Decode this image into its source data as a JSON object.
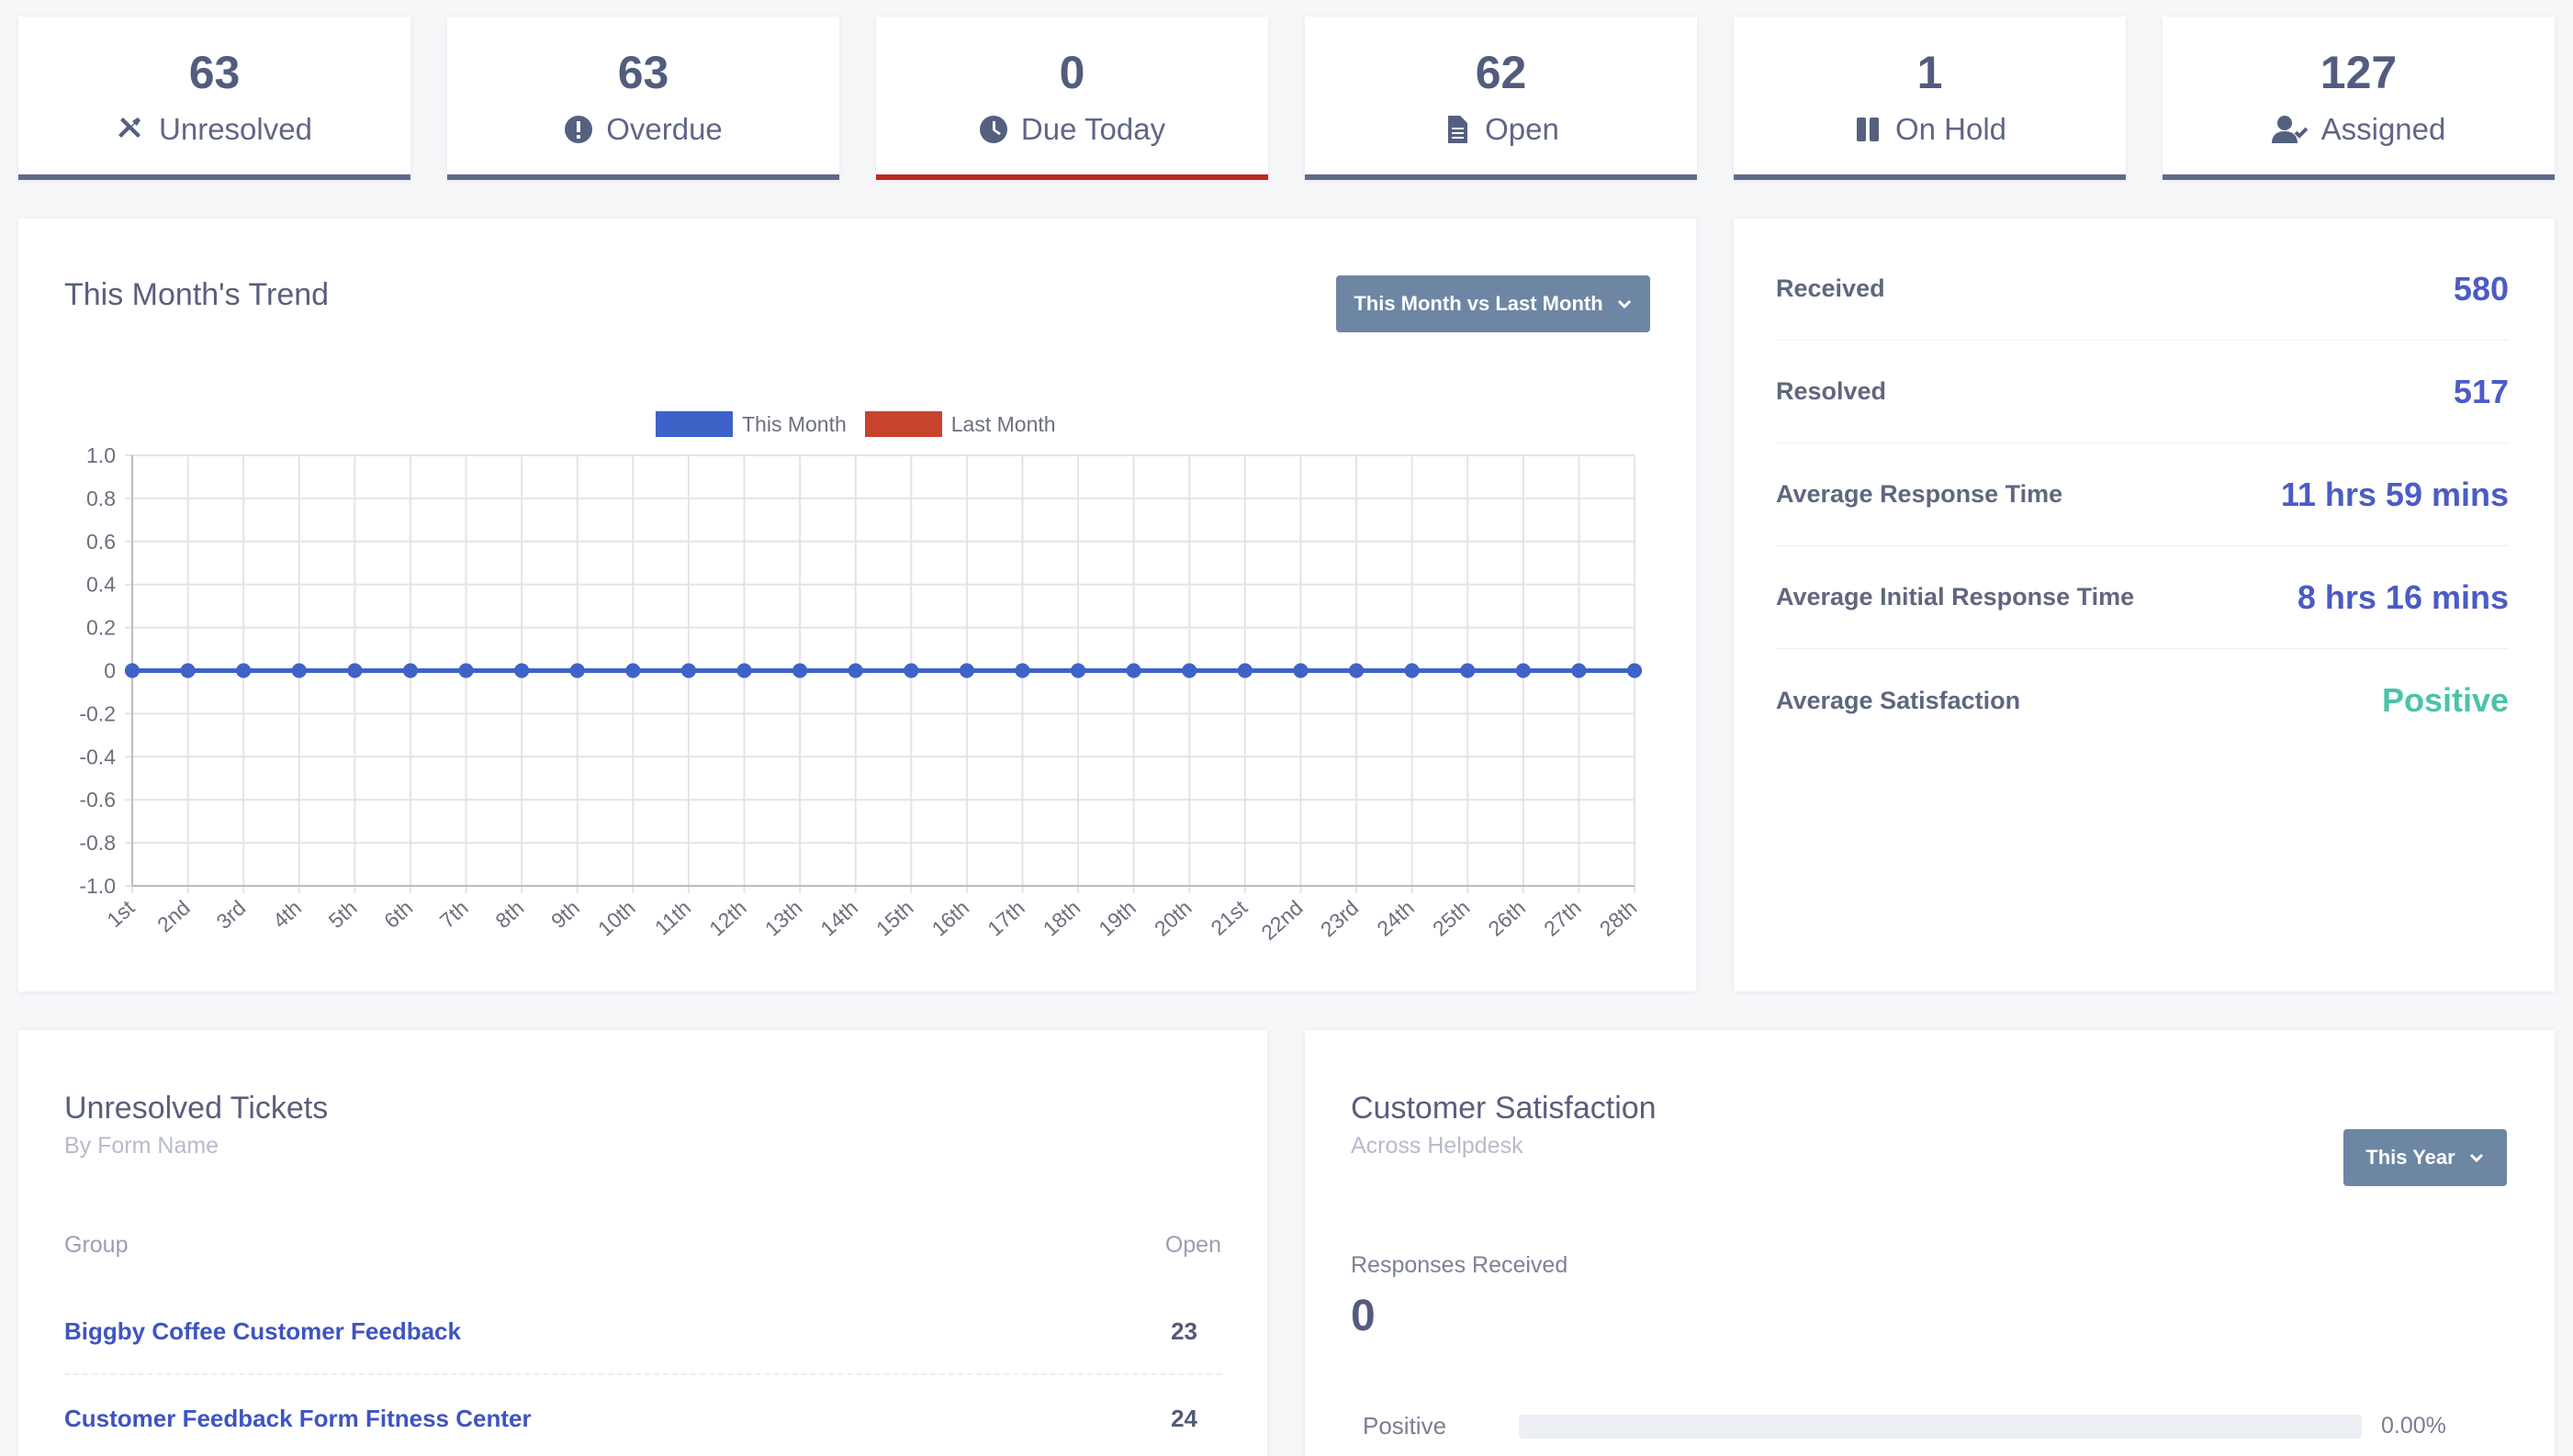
{
  "stats": [
    {
      "value": "63",
      "label": "Unresolved",
      "icon": "tools-icon"
    },
    {
      "value": "63",
      "label": "Overdue",
      "icon": "exclamation-circle-icon"
    },
    {
      "value": "0",
      "label": "Due Today",
      "icon": "clock-icon"
    },
    {
      "value": "62",
      "label": "Open",
      "icon": "document-icon"
    },
    {
      "value": "1",
      "label": "On Hold",
      "icon": "pause-icon"
    },
    {
      "value": "127",
      "label": "Assigned",
      "icon": "user-check-icon"
    }
  ],
  "trend": {
    "title": "This Month's Trend",
    "dropdown_label": "This Month vs Last Month"
  },
  "chart_data": {
    "type": "line",
    "title": "",
    "xlabel": "",
    "ylabel": "",
    "categories": [
      "1st",
      "2nd",
      "3rd",
      "4th",
      "5th",
      "6th",
      "7th",
      "8th",
      "9th",
      "10th",
      "11th",
      "12th",
      "13th",
      "14th",
      "15th",
      "16th",
      "17th",
      "18th",
      "19th",
      "20th",
      "21st",
      "22nd",
      "23rd",
      "24th",
      "25th",
      "26th",
      "27th",
      "28th"
    ],
    "series": [
      {
        "name": "This Month",
        "color": "#3d63c9",
        "values": [
          0,
          0,
          0,
          0,
          0,
          0,
          0,
          0,
          0,
          0,
          0,
          0,
          0,
          0,
          0,
          0,
          0,
          0,
          0,
          0,
          0,
          0,
          0,
          0,
          0,
          0,
          0,
          0
        ]
      },
      {
        "name": "Last Month",
        "color": "#c8432c",
        "values": [
          0,
          0,
          0,
          0,
          0,
          0,
          0,
          0,
          0,
          0,
          0,
          0,
          0,
          0,
          0,
          0,
          0,
          0,
          0,
          0,
          0,
          0,
          0,
          0,
          0,
          0,
          0,
          0
        ]
      }
    ],
    "ylim": [
      -1.0,
      1.0
    ],
    "yticks": [
      "1.0",
      "0.8",
      "0.6",
      "0.4",
      "0.2",
      "0",
      "-0.2",
      "-0.4",
      "-0.6",
      "-0.8",
      "-1.0"
    ],
    "grid": true,
    "legend": "top-center"
  },
  "metrics": [
    {
      "label": "Received",
      "value": "580"
    },
    {
      "label": "Resolved",
      "value": "517"
    },
    {
      "label": "Average Response Time",
      "value": "11 hrs 59 mins"
    },
    {
      "label": "Average Initial Response Time",
      "value": "8 hrs 16 mins"
    },
    {
      "label": "Average Satisfaction",
      "value": "Positive"
    }
  ],
  "unresolved": {
    "title": "Unresolved Tickets",
    "subtitle": "By Form Name",
    "col_group": "Group",
    "col_open": "Open",
    "rows": [
      {
        "name": "Biggby Coffee Customer Feedback",
        "count": "23"
      },
      {
        "name": "Customer Feedback Form Fitness Center",
        "count": "24"
      }
    ]
  },
  "satisfaction": {
    "title": "Customer Satisfaction",
    "subtitle": "Across Helpdesk",
    "dropdown_label": "This Year",
    "responses_label": "Responses Received",
    "responses_value": "0",
    "bars": [
      {
        "label": "Positive",
        "percent_text": "0.00%",
        "fraction": 0
      }
    ]
  },
  "colors": {
    "accent": "#4b5cc4",
    "positive": "#4cc3a8",
    "card_border": "#5f6a8c",
    "due_today_border": "#bb2a1e",
    "button": "#6d86a4"
  }
}
